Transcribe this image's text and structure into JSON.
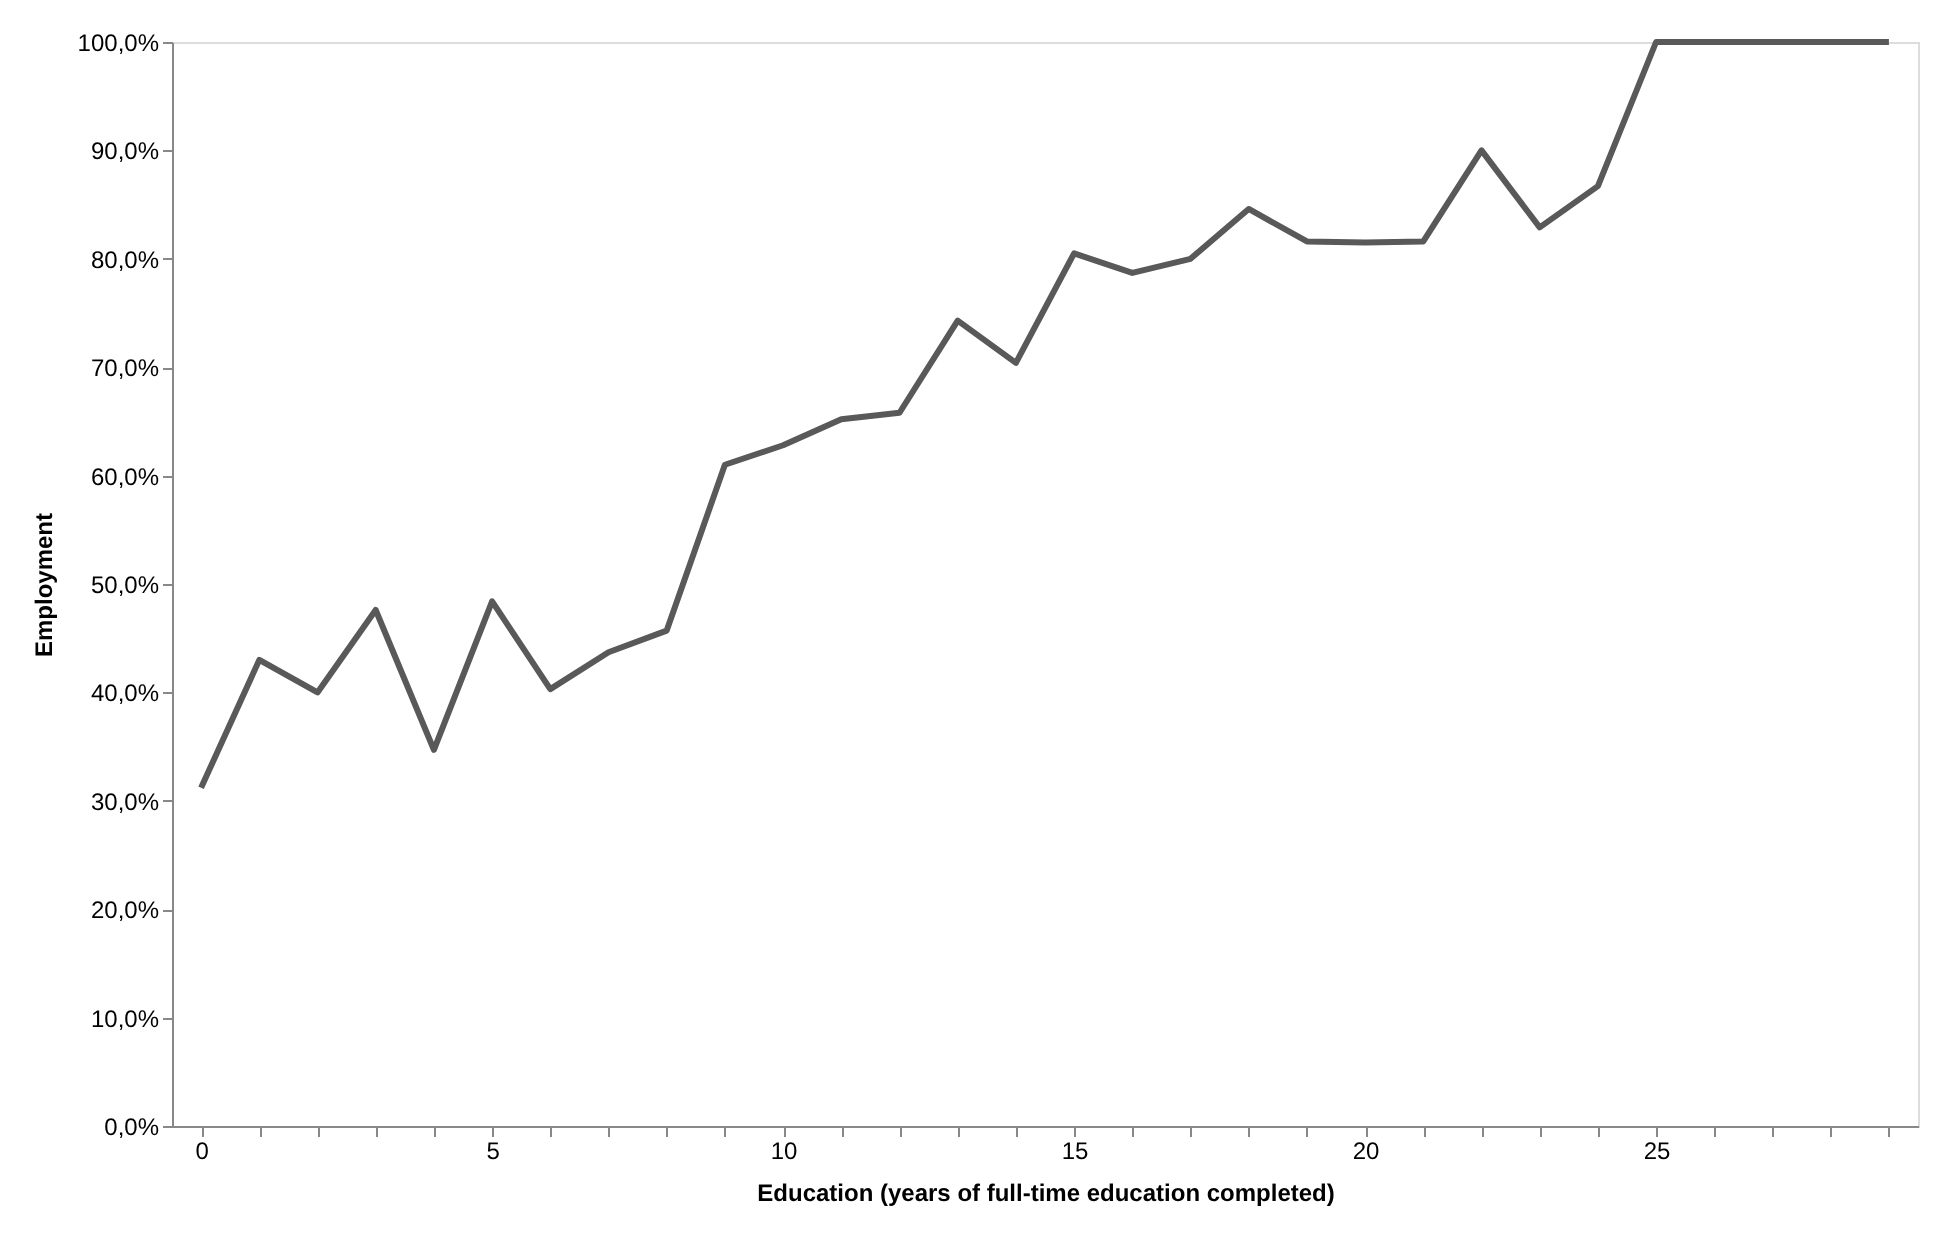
{
  "chart_data": {
    "type": "line",
    "xlabel": "Education (years of full-time education completed)",
    "ylabel": "Employment",
    "x": [
      0,
      1,
      2,
      3,
      4,
      5,
      6,
      7,
      8,
      9,
      10,
      11,
      12,
      13,
      14,
      15,
      16,
      17,
      18,
      19,
      20,
      21,
      22,
      23,
      24,
      25,
      26,
      27,
      28,
      29
    ],
    "series": [
      {
        "color": "#595959",
        "values": [
          31.2,
          43,
          40,
          47.6,
          34.7,
          48.4,
          40.3,
          43.7,
          45.7,
          61,
          62.8,
          65.2,
          65.8,
          74.3,
          70.4,
          80.5,
          78.7,
          80,
          84.6,
          81.6,
          81.5,
          81.6,
          90,
          82.9,
          86.7,
          100,
          100,
          100,
          100,
          100
        ]
      }
    ],
    "xlim": [
      -0.5,
      29.5
    ],
    "ylim": [
      0,
      100
    ],
    "xticks": [
      0,
      {
        "value": 1,
        "label": null
      },
      {
        "value": 2,
        "label": null
      },
      {
        "value": 3,
        "label": null
      },
      {
        "value": 4,
        "label": null
      },
      5,
      {
        "value": 6,
        "label": null
      },
      {
        "value": 7,
        "label": null
      },
      {
        "value": 8,
        "label": null
      },
      {
        "value": 9,
        "label": null
      },
      10,
      {
        "value": 11,
        "label": null
      },
      {
        "value": 12,
        "label": null
      },
      {
        "value": 13,
        "label": null
      },
      {
        "value": 14,
        "label": null
      },
      15,
      {
        "value": 16,
        "label": null
      },
      {
        "value": 17,
        "label": null
      },
      {
        "value": 18,
        "label": null
      },
      {
        "value": 19,
        "label": null
      },
      20,
      {
        "value": 21,
        "label": null
      },
      {
        "value": 22,
        "label": null
      },
      {
        "value": 23,
        "label": null
      },
      {
        "value": 24,
        "label": null
      },
      25,
      {
        "value": 26,
        "label": null
      },
      {
        "value": 27,
        "label": null
      },
      {
        "value": 28,
        "label": null
      },
      {
        "value": 29,
        "label": null
      }
    ],
    "yticks": [
      {
        "value": 0,
        "label": "0,0%"
      },
      {
        "value": 10,
        "label": "10,0%"
      },
      {
        "value": 20,
        "label": "20,0%"
      },
      {
        "value": 30,
        "label": "30,0%"
      },
      {
        "value": 40,
        "label": "40,0%"
      },
      {
        "value": 50,
        "label": "50,0%"
      },
      {
        "value": 60,
        "label": "60,0%"
      },
      {
        "value": 70,
        "label": "70,0%"
      },
      {
        "value": 80,
        "label": "80,0%"
      },
      {
        "value": 90,
        "label": "90,0%"
      },
      {
        "value": 100,
        "label": "100,0%"
      }
    ],
    "grid": false,
    "marker": "none",
    "line_style": "solid"
  }
}
